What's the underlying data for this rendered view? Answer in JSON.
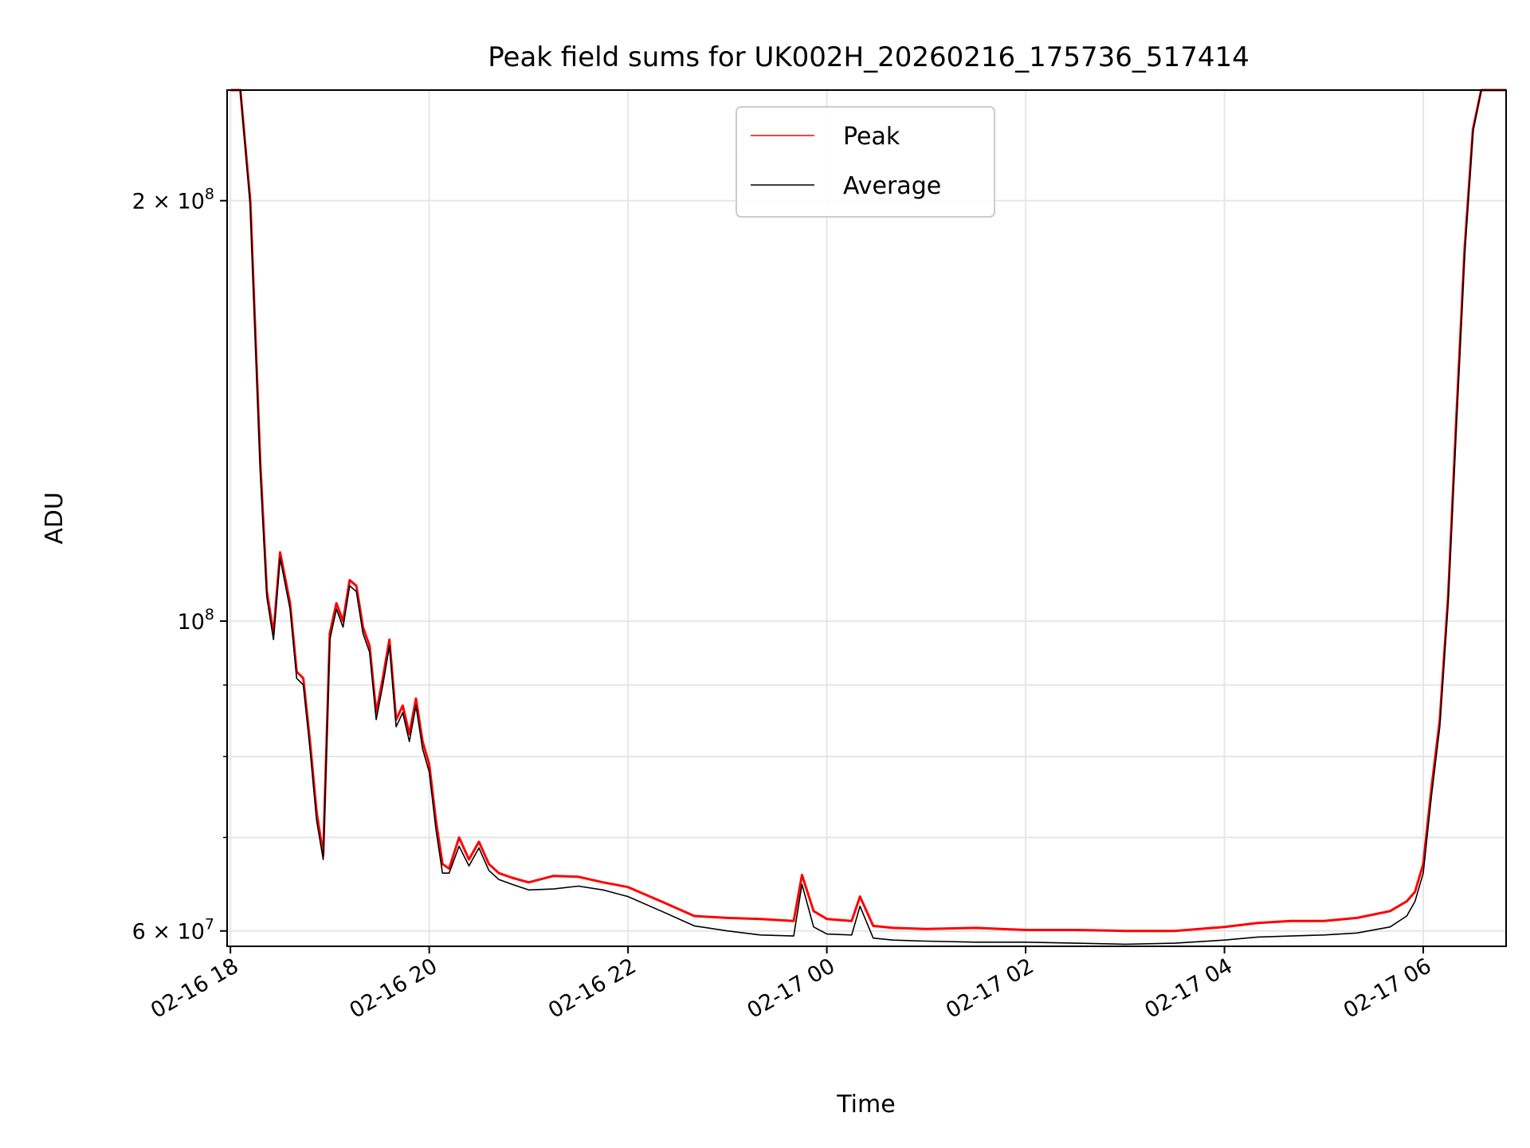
{
  "chart_data": {
    "type": "line",
    "title": "Peak field sums for UK002H_20260216_175736_517414",
    "xlabel": "Time",
    "ylabel": "ADU",
    "y_scale": "log",
    "xlim": [
      "2026-02-16 17:58",
      "2026-02-17 06:50"
    ],
    "ylim": [
      58500000,
      240000000
    ],
    "grid": true,
    "legend": "top-center",
    "colors": {
      "Peak": "#ff0000",
      "Average": "#000000"
    },
    "x_ticks": [
      {
        "time": "2026-02-16 18:00",
        "label": "02-16 18"
      },
      {
        "time": "2026-02-16 20:00",
        "label": "02-16 20"
      },
      {
        "time": "2026-02-16 22:00",
        "label": "02-16 22"
      },
      {
        "time": "2026-02-17 00:00",
        "label": "02-17 00"
      },
      {
        "time": "2026-02-17 02:00",
        "label": "02-17 02"
      },
      {
        "time": "2026-02-17 04:00",
        "label": "02-17 04"
      },
      {
        "time": "2026-02-17 06:00",
        "label": "02-17 06"
      }
    ],
    "y_ticks": [
      {
        "value": 60000000,
        "base": "6 × 10",
        "exp": "7"
      },
      {
        "value": 100000000,
        "base": "10",
        "exp": "8"
      },
      {
        "value": 200000000,
        "base": "2 × 10",
        "exp": "8"
      }
    ],
    "y_minor_ticks": [
      70000000,
      80000000,
      90000000
    ],
    "series": [
      {
        "name": "Peak",
        "x": [
          "2026-02-16 18:00",
          "2026-02-16 18:06",
          "2026-02-16 18:12",
          "2026-02-16 18:18",
          "2026-02-16 18:22",
          "2026-02-16 18:26",
          "2026-02-16 18:30",
          "2026-02-16 18:36",
          "2026-02-16 18:40",
          "2026-02-16 18:44",
          "2026-02-16 18:48",
          "2026-02-16 18:52",
          "2026-02-16 18:56",
          "2026-02-16 19:00",
          "2026-02-16 19:04",
          "2026-02-16 19:08",
          "2026-02-16 19:12",
          "2026-02-16 19:16",
          "2026-02-16 19:20",
          "2026-02-16 19:24",
          "2026-02-16 19:28",
          "2026-02-16 19:32",
          "2026-02-16 19:36",
          "2026-02-16 19:40",
          "2026-02-16 19:44",
          "2026-02-16 19:48",
          "2026-02-16 19:52",
          "2026-02-16 19:56",
          "2026-02-16 20:00",
          "2026-02-16 20:04",
          "2026-02-16 20:08",
          "2026-02-16 20:12",
          "2026-02-16 20:18",
          "2026-02-16 20:24",
          "2026-02-16 20:30",
          "2026-02-16 20:36",
          "2026-02-16 20:42",
          "2026-02-16 20:50",
          "2026-02-16 21:00",
          "2026-02-16 21:15",
          "2026-02-16 21:30",
          "2026-02-16 21:45",
          "2026-02-16 22:00",
          "2026-02-16 22:20",
          "2026-02-16 22:40",
          "2026-02-16 23:00",
          "2026-02-16 23:20",
          "2026-02-16 23:40",
          "2026-02-16 23:45",
          "2026-02-16 23:52",
          "2026-02-17 00:00",
          "2026-02-17 00:15",
          "2026-02-17 00:20",
          "2026-02-17 00:28",
          "2026-02-17 00:40",
          "2026-02-17 01:00",
          "2026-02-17 01:30",
          "2026-02-17 02:00",
          "2026-02-17 02:30",
          "2026-02-17 03:00",
          "2026-02-17 03:30",
          "2026-02-17 04:00",
          "2026-02-17 04:20",
          "2026-02-17 04:40",
          "2026-02-17 05:00",
          "2026-02-17 05:20",
          "2026-02-17 05:40",
          "2026-02-17 05:50",
          "2026-02-17 05:55",
          "2026-02-17 06:00",
          "2026-02-17 06:05",
          "2026-02-17 06:10",
          "2026-02-17 06:15",
          "2026-02-17 06:20",
          "2026-02-17 06:25",
          "2026-02-17 06:30",
          "2026-02-17 06:35",
          "2026-02-17 06:40",
          "2026-02-17 06:45",
          "2026-02-17 06:50"
        ],
        "values": [
          240000000,
          240000000,
          200000000,
          130000000,
          105000000,
          98000000,
          112000000,
          103000000,
          92000000,
          91000000,
          82000000,
          73000000,
          68000000,
          98000000,
          103000000,
          100000000,
          107000000,
          106000000,
          99000000,
          96000000,
          86000000,
          91000000,
          97000000,
          85000000,
          87000000,
          83000000,
          88000000,
          82000000,
          79000000,
          72000000,
          67000000,
          66500000,
          70000000,
          67500000,
          69500000,
          67000000,
          66000000,
          65500000,
          65000000,
          65700000,
          65600000,
          65000000,
          64500000,
          63000000,
          61500000,
          61300000,
          61200000,
          61000000,
          65800000,
          62000000,
          61200000,
          61000000,
          63500000,
          60500000,
          60300000,
          60200000,
          60300000,
          60100000,
          60100000,
          60000000,
          60000000,
          60400000,
          60800000,
          61000000,
          61000000,
          61300000,
          62000000,
          63000000,
          64000000,
          67000000,
          76000000,
          85000000,
          104000000,
          140000000,
          185000000,
          225000000,
          240000000,
          240000000,
          240000000,
          240000000
        ]
      },
      {
        "name": "Average",
        "x": [
          "2026-02-16 18:00",
          "2026-02-16 18:06",
          "2026-02-16 18:12",
          "2026-02-16 18:18",
          "2026-02-16 18:22",
          "2026-02-16 18:26",
          "2026-02-16 18:30",
          "2026-02-16 18:36",
          "2026-02-16 18:40",
          "2026-02-16 18:44",
          "2026-02-16 18:48",
          "2026-02-16 18:52",
          "2026-02-16 18:56",
          "2026-02-16 19:00",
          "2026-02-16 19:04",
          "2026-02-16 19:08",
          "2026-02-16 19:12",
          "2026-02-16 19:16",
          "2026-02-16 19:20",
          "2026-02-16 19:24",
          "2026-02-16 19:28",
          "2026-02-16 19:32",
          "2026-02-16 19:36",
          "2026-02-16 19:40",
          "2026-02-16 19:44",
          "2026-02-16 19:48",
          "2026-02-16 19:52",
          "2026-02-16 19:56",
          "2026-02-16 20:00",
          "2026-02-16 20:04",
          "2026-02-16 20:08",
          "2026-02-16 20:12",
          "2026-02-16 20:18",
          "2026-02-16 20:24",
          "2026-02-16 20:30",
          "2026-02-16 20:36",
          "2026-02-16 20:42",
          "2026-02-16 20:50",
          "2026-02-16 21:00",
          "2026-02-16 21:15",
          "2026-02-16 21:30",
          "2026-02-16 21:45",
          "2026-02-16 22:00",
          "2026-02-16 22:20",
          "2026-02-16 22:40",
          "2026-02-16 23:00",
          "2026-02-16 23:20",
          "2026-02-16 23:40",
          "2026-02-16 23:45",
          "2026-02-16 23:52",
          "2026-02-17 00:00",
          "2026-02-17 00:15",
          "2026-02-17 00:20",
          "2026-02-17 00:28",
          "2026-02-17 00:40",
          "2026-02-17 01:00",
          "2026-02-17 01:30",
          "2026-02-17 02:00",
          "2026-02-17 02:30",
          "2026-02-17 03:00",
          "2026-02-17 03:30",
          "2026-02-17 04:00",
          "2026-02-17 04:20",
          "2026-02-17 04:40",
          "2026-02-17 05:00",
          "2026-02-17 05:20",
          "2026-02-17 05:40",
          "2026-02-17 05:50",
          "2026-02-17 05:55",
          "2026-02-17 06:00",
          "2026-02-17 06:05",
          "2026-02-17 06:10",
          "2026-02-17 06:15",
          "2026-02-17 06:20",
          "2026-02-17 06:25",
          "2026-02-17 06:30",
          "2026-02-17 06:35",
          "2026-02-17 06:40",
          "2026-02-17 06:45",
          "2026-02-17 06:50"
        ],
        "values": [
          240000000,
          240000000,
          198000000,
          128000000,
          104000000,
          97000000,
          111000000,
          102000000,
          91000000,
          90000000,
          81000000,
          72000000,
          67500000,
          97000000,
          102000000,
          99000000,
          106000000,
          105000000,
          98000000,
          95000000,
          85000000,
          90000000,
          96000000,
          84000000,
          86000000,
          82000000,
          87000000,
          81000000,
          78000000,
          71000000,
          66000000,
          66000000,
          69000000,
          66800000,
          68800000,
          66300000,
          65300000,
          64800000,
          64200000,
          64300000,
          64600000,
          64200000,
          63500000,
          62000000,
          60500000,
          60000000,
          59600000,
          59500000,
          64800000,
          60400000,
          59700000,
          59600000,
          62500000,
          59300000,
          59100000,
          59000000,
          58900000,
          58900000,
          58800000,
          58700000,
          58800000,
          59100000,
          59400000,
          59500000,
          59600000,
          59800000,
          60400000,
          61500000,
          63000000,
          66000000,
          75000000,
          84000000,
          103000000,
          138000000,
          183000000,
          224000000,
          240000000,
          240000000,
          240000000,
          240000000
        ]
      }
    ]
  }
}
